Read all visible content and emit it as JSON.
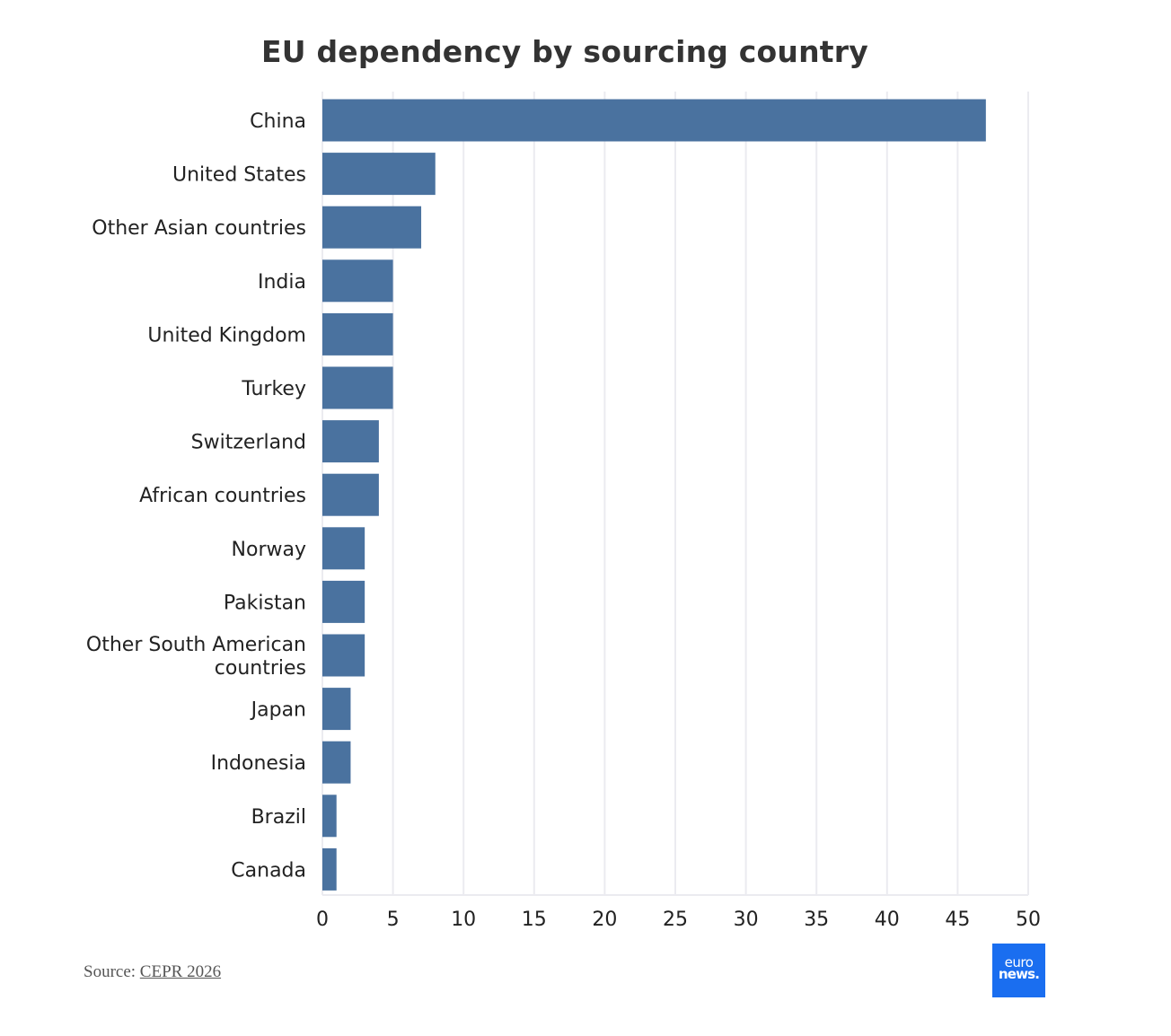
{
  "title": "EU dependency by sourcing country",
  "source": {
    "prefix": "Source: ",
    "link_text": "CEPR 2026"
  },
  "logo": {
    "line1": "euro",
    "line2": "news."
  },
  "colors": {
    "bar": "#4a729f",
    "grid": "#ebebf0",
    "logo_bg": "#1a6ef0"
  },
  "chart_data": {
    "type": "bar",
    "orientation": "horizontal",
    "title": "EU dependency by sourcing country",
    "categories": [
      "China",
      "United States",
      "Other Asian countries",
      "India",
      "United Kingdom",
      "Turkey",
      "Switzerland",
      "African countries",
      "Norway",
      "Pakistan",
      "Other South American countries",
      "Japan",
      "Indonesia",
      "Brazil",
      "Canada"
    ],
    "category_lines": [
      [
        "China"
      ],
      [
        "United States"
      ],
      [
        "Other Asian countries"
      ],
      [
        "India"
      ],
      [
        "United Kingdom"
      ],
      [
        "Turkey"
      ],
      [
        "Switzerland"
      ],
      [
        "African countries"
      ],
      [
        "Norway"
      ],
      [
        "Pakistan"
      ],
      [
        "Other South American",
        "countries"
      ],
      [
        "Japan"
      ],
      [
        "Indonesia"
      ],
      [
        "Brazil"
      ],
      [
        "Canada"
      ]
    ],
    "values": [
      47,
      8,
      7,
      5,
      5,
      5,
      4,
      4,
      3,
      3,
      3,
      2,
      2,
      1,
      1
    ],
    "xlim": [
      0,
      50
    ],
    "xticks": [
      0,
      5,
      10,
      15,
      20,
      25,
      30,
      35,
      40,
      45,
      50
    ],
    "xlabel": "",
    "ylabel": "",
    "grid": "vertical",
    "legend": "none"
  }
}
